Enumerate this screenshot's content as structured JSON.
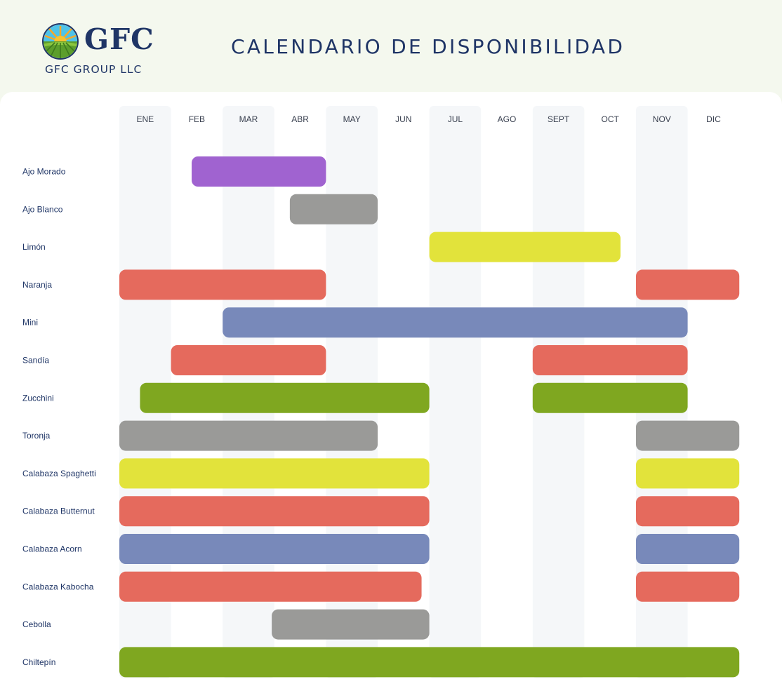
{
  "header": {
    "logo_text": "GFC",
    "company": "GFC GROUP LLC",
    "title": "CALENDARIO DE DISPONIBILIDAD"
  },
  "colors": {
    "purple": "#a063d0",
    "gray": "#9a9a98",
    "yellow": "#e2e33b",
    "red": "#e56a5d",
    "blue": "#7889ba",
    "green": "#7fa720",
    "column_shade": "#f5f7f9",
    "navy": "#1f3566"
  },
  "chart_data": {
    "type": "gantt",
    "months": [
      "ENE",
      "FEB",
      "MAR",
      "ABR",
      "MAY",
      "JUN",
      "JUL",
      "AGO",
      "SEPT",
      "OCT",
      "NOV",
      "DIC"
    ],
    "rows": [
      {
        "name": "Ajo Morado",
        "color": "purple",
        "ranges": [
          [
            1.4,
            4.0
          ]
        ]
      },
      {
        "name": "Ajo Blanco",
        "color": "gray",
        "ranges": [
          [
            3.3,
            5.0
          ]
        ]
      },
      {
        "name": "Limón",
        "color": "yellow",
        "ranges": [
          [
            6.0,
            9.7
          ]
        ]
      },
      {
        "name": "Naranja",
        "color": "red",
        "ranges": [
          [
            0,
            4.0
          ],
          [
            10.0,
            12.0
          ]
        ]
      },
      {
        "name": "Mini",
        "color": "blue",
        "ranges": [
          [
            2.0,
            11.0
          ]
        ]
      },
      {
        "name": "Sandía",
        "color": "red",
        "ranges": [
          [
            1.0,
            4.0
          ],
          [
            8.0,
            11.0
          ]
        ]
      },
      {
        "name": "Zucchini",
        "color": "green",
        "ranges": [
          [
            0.4,
            6.0
          ],
          [
            8.0,
            11.0
          ]
        ]
      },
      {
        "name": "Toronja",
        "color": "gray",
        "ranges": [
          [
            0,
            5.0
          ],
          [
            10.0,
            12.0
          ]
        ]
      },
      {
        "name": "Calabaza Spaghetti",
        "color": "yellow",
        "ranges": [
          [
            0,
            6.0
          ],
          [
            10.0,
            12.0
          ]
        ]
      },
      {
        "name": "Calabaza Butternut",
        "color": "red",
        "ranges": [
          [
            0,
            6.0
          ],
          [
            10.0,
            12.0
          ]
        ]
      },
      {
        "name": "Calabaza Acorn",
        "color": "blue",
        "ranges": [
          [
            0,
            6.0
          ],
          [
            10.0,
            12.0
          ]
        ]
      },
      {
        "name": "Calabaza Kabocha",
        "color": "red",
        "ranges": [
          [
            0,
            5.85
          ],
          [
            10.0,
            12.0
          ]
        ]
      },
      {
        "name": "Cebolla",
        "color": "gray",
        "ranges": [
          [
            2.95,
            6.0
          ]
        ]
      },
      {
        "name": "Chiltepín",
        "color": "green",
        "ranges": [
          [
            0,
            12.0
          ]
        ]
      }
    ]
  }
}
